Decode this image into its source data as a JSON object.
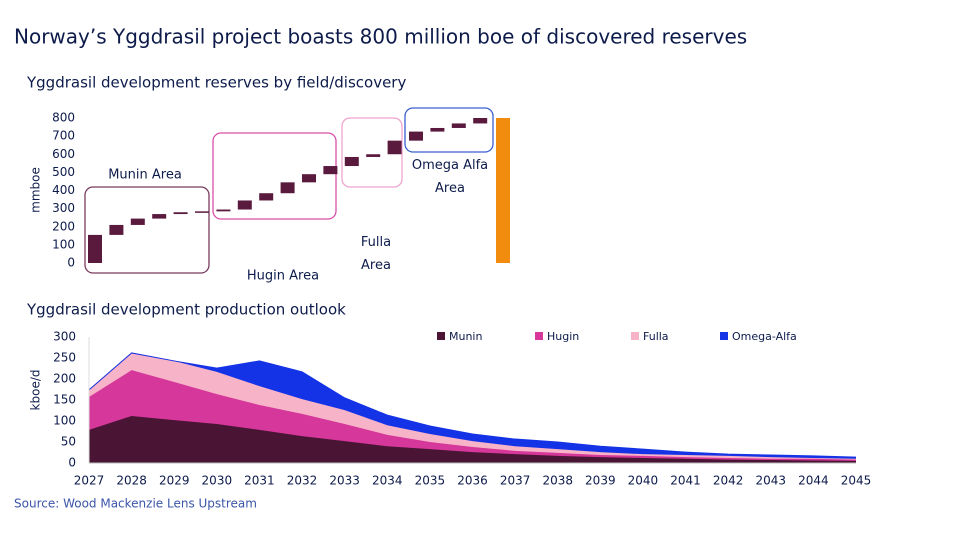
{
  "title": "Norway’s Yggdrasil project boasts 800 million boe of discovered reserves",
  "source": "Source: Wood Mackenzie Lens Upstream",
  "chart_data": [
    {
      "type": "waterfall",
      "title": "Yggdrasil development reserves by field/discovery",
      "y_label": "mmboe",
      "ylim": [
        0,
        800
      ],
      "yticks": [
        0,
        100,
        200,
        300,
        400,
        500,
        600,
        700,
        800
      ],
      "color": "#5a1a3e",
      "total_color": "#f28c0f",
      "total": 800,
      "groups": [
        {
          "name": "Munin Area",
          "box_color": "#7a3a5c",
          "values": [
            155,
            55,
            35,
            25,
            10,
            5
          ]
        },
        {
          "name": "Hugin Area",
          "box_color": "#d94fa8",
          "values": [
            10,
            50,
            40,
            60,
            45,
            45
          ]
        },
        {
          "name": "Fulla Area",
          "box_color": "#eea3cf",
          "values": [
            50,
            15,
            75
          ]
        },
        {
          "name": "Omega Alfa Area",
          "box_color": "#3a5fd0",
          "values": [
            50,
            20,
            25,
            30
          ]
        }
      ]
    },
    {
      "type": "stacked-area",
      "title": "Yggdrasil development production outlook",
      "y_label": "kboe/d",
      "ylim": [
        0,
        300
      ],
      "yticks": [
        0,
        50,
        100,
        150,
        200,
        250,
        300
      ],
      "x": [
        2027,
        2028,
        2029,
        2030,
        2031,
        2032,
        2033,
        2034,
        2035,
        2036,
        2037,
        2038,
        2039,
        2040,
        2041,
        2042,
        2043,
        2044,
        2045
      ],
      "xlim": [
        2027,
        2045
      ],
      "series": [
        {
          "name": "Munin",
          "color": "#4a1535",
          "values": [
            79,
            112,
            102,
            93,
            79,
            64,
            52,
            40,
            33,
            26,
            21,
            17,
            14,
            12,
            10,
            8,
            7,
            6,
            5
          ]
        },
        {
          "name": "Hugin",
          "color": "#d6379a",
          "values": [
            78,
            109,
            91,
            71,
            59,
            53,
            41,
            27,
            17,
            12,
            8,
            7,
            5,
            5,
            4,
            4,
            3,
            4,
            3
          ]
        },
        {
          "name": "Fulla",
          "color": "#f7b3c8",
          "values": [
            17,
            41,
            50,
            53,
            45,
            35,
            33,
            23,
            19,
            14,
            11,
            9,
            7,
            4,
            5,
            5,
            4,
            2,
            2
          ]
        },
        {
          "name": "Omega-Alfa",
          "color": "#1433e6",
          "values": [
            0,
            0,
            0,
            9,
            60,
            65,
            29,
            24,
            19,
            17,
            17,
            17,
            14,
            12,
            7,
            4,
            5,
            5,
            4
          ]
        }
      ]
    }
  ]
}
